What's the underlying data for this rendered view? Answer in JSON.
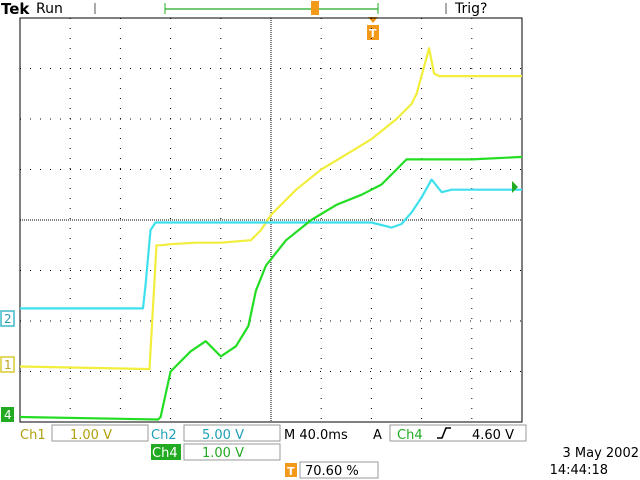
{
  "header": {
    "brand": "Tek",
    "run_state": "Run",
    "trigger_status": "Trig?",
    "trigger_marker": "T"
  },
  "footer": {
    "ch1_label": "Ch1",
    "ch1_scale": "1.00 V",
    "ch2_label": "Ch2",
    "ch2_scale": "5.00 V",
    "ch4_label": "Ch4",
    "ch4_scale": "1.00 V",
    "timebase": "M 40.0ms",
    "trigger_mode": "A",
    "trigger_source": "Ch4",
    "trigger_slope_icon": "rising-edge-icon",
    "trigger_level": "4.60 V",
    "trigger_position_marker": "T",
    "trigger_position": "70.60 %",
    "date": "3 May 2002",
    "time": "14:44:18"
  },
  "channel_markers": {
    "ch1": "1",
    "ch2": "2",
    "ch4": "4"
  },
  "colors": {
    "ch1": "#f2ee3c",
    "ch2": "#3fe0ee",
    "ch4": "#22dd22",
    "trigger": "#f39a1a",
    "grid": "#000000"
  },
  "chart_data": {
    "type": "line",
    "title": "",
    "xlabel": "",
    "ylabel": "",
    "grid": true,
    "xlim": [
      0,
      10
    ],
    "ylim": [
      -4,
      4
    ],
    "x_unit": "div",
    "y_unit": "div",
    "series": [
      {
        "name": "Ch1",
        "color": "#f2ee3c",
        "x": [
          0,
          2.5,
          2.58,
          2.72,
          2.8,
          3,
          3.5,
          4,
          4.6,
          4.8,
          5,
          5.5,
          6,
          6.5,
          7,
          7.5,
          7.8,
          7.9,
          8.15,
          8.25,
          8.35,
          9,
          10
        ],
        "y": [
          -2.9,
          -2.95,
          -2.95,
          -0.5,
          -0.5,
          -0.48,
          -0.45,
          -0.45,
          -0.4,
          -0.2,
          0.1,
          0.6,
          1,
          1.3,
          1.6,
          2,
          2.3,
          2.5,
          3.4,
          2.9,
          2.85,
          2.85,
          2.85
        ]
      },
      {
        "name": "Ch2",
        "color": "#3fe0ee",
        "x": [
          0,
          2.45,
          2.5,
          2.6,
          2.7,
          5,
          7,
          7.2,
          7.4,
          7.6,
          7.8,
          8,
          8.2,
          8.4,
          8.6,
          10
        ],
        "y": [
          -1.75,
          -1.75,
          -1.3,
          -0.2,
          -0.05,
          -0.05,
          -0.05,
          -0.1,
          -0.15,
          -0.08,
          0.15,
          0.45,
          0.8,
          0.55,
          0.6,
          0.6
        ]
      },
      {
        "name": "Ch4",
        "color": "#22dd22",
        "x": [
          0,
          2.75,
          2.8,
          3,
          3.4,
          3.7,
          4,
          4.3,
          4.55,
          4.7,
          4.9,
          5.3,
          5.8,
          6.3,
          6.8,
          7.2,
          7.5,
          7.7,
          8,
          9,
          10
        ],
        "y": [
          -3.9,
          -3.95,
          -3.9,
          -3,
          -2.6,
          -2.4,
          -2.7,
          -2.5,
          -2.1,
          -1.4,
          -0.9,
          -0.4,
          0,
          0.3,
          0.5,
          0.7,
          1,
          1.2,
          1.2,
          1.2,
          1.25
        ]
      }
    ]
  }
}
